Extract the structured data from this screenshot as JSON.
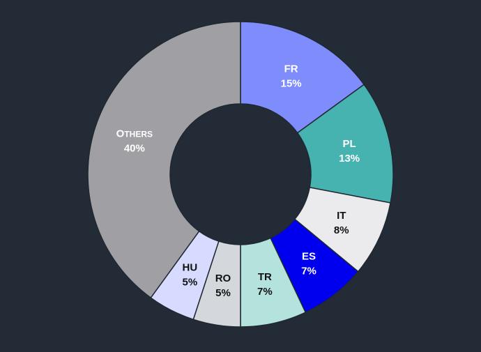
{
  "chart_data": {
    "type": "pie",
    "title": "",
    "slices": [
      {
        "label": "FR",
        "value": 15,
        "value_label": "15%",
        "color": "#7e8dfb",
        "text_color": "#ffffff"
      },
      {
        "label": "PL",
        "value": 13,
        "value_label": "13%",
        "color": "#47b3b1",
        "text_color": "#ffffff"
      },
      {
        "label": "IT",
        "value": 8,
        "value_label": "8%",
        "color": "#ebebed",
        "text_color": "#111111"
      },
      {
        "label": "ES",
        "value": 7,
        "value_label": "7%",
        "color": "#0000ee",
        "text_color": "#ffffff"
      },
      {
        "label": "TR",
        "value": 7,
        "value_label": "7%",
        "color": "#b3e3dc",
        "text_color": "#111111"
      },
      {
        "label": "RO",
        "value": 5,
        "value_label": "5%",
        "color": "#d4d8dc",
        "text_color": "#111111"
      },
      {
        "label": "HU",
        "value": 5,
        "value_label": "5%",
        "color": "#d6dbff",
        "text_color": "#111111"
      },
      {
        "label": "Others",
        "value": 40,
        "value_label": "40%",
        "color": "#a0a0a4",
        "text_color": "#ffffff"
      }
    ],
    "donut": true,
    "start_angle_deg": 0,
    "direction": "clockwise",
    "legend": "none"
  }
}
